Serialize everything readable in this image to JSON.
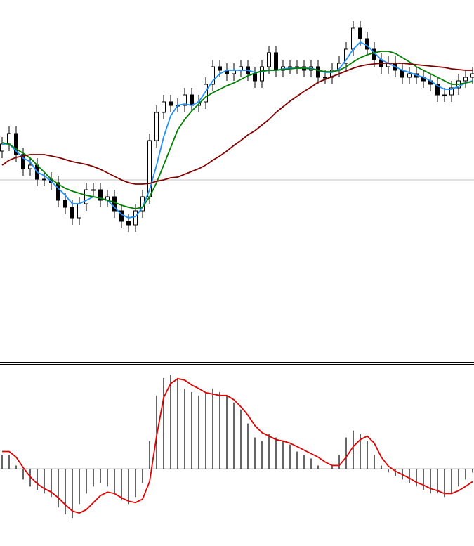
{
  "chart_data": [
    {
      "type": "candlestick",
      "open": [
        300,
        310,
        325,
        295,
        275,
        280,
        260,
        260,
        255,
        230,
        220,
        205,
        225,
        245,
        245,
        230,
        235,
        215,
        200,
        195,
        215,
        235,
        315,
        355,
        370,
        365,
        365,
        380,
        365,
        370,
        395,
        420,
        415,
        410,
        415,
        420,
        410,
        400,
        420,
        440,
        415,
        420,
        420,
        420,
        415,
        420,
        405,
        405,
        415,
        425,
        445,
        475,
        460,
        445,
        430,
        420,
        425,
        415,
        405,
        410,
        405,
        400,
        395,
        380,
        380,
        390,
        400,
        405
      ],
      "high": [
        320,
        335,
        335,
        305,
        290,
        290,
        270,
        270,
        265,
        240,
        230,
        235,
        255,
        255,
        255,
        245,
        245,
        225,
        210,
        225,
        245,
        325,
        365,
        380,
        380,
        375,
        390,
        390,
        380,
        405,
        430,
        430,
        425,
        425,
        430,
        430,
        420,
        430,
        450,
        450,
        430,
        430,
        430,
        430,
        430,
        430,
        415,
        425,
        435,
        455,
        485,
        485,
        470,
        455,
        440,
        435,
        435,
        425,
        420,
        420,
        415,
        410,
        405,
        390,
        400,
        410,
        415,
        420
      ],
      "low": [
        290,
        300,
        285,
        265,
        265,
        250,
        250,
        245,
        220,
        210,
        195,
        195,
        215,
        235,
        220,
        220,
        205,
        190,
        185,
        185,
        205,
        225,
        305,
        345,
        355,
        355,
        355,
        355,
        355,
        360,
        385,
        405,
        400,
        400,
        405,
        400,
        390,
        390,
        410,
        405,
        405,
        410,
        410,
        405,
        405,
        395,
        395,
        395,
        405,
        415,
        435,
        450,
        435,
        420,
        410,
        410,
        405,
        395,
        395,
        395,
        390,
        385,
        370,
        370,
        370,
        380,
        390,
        395
      ],
      "close": [
        310,
        325,
        295,
        275,
        280,
        260,
        260,
        255,
        230,
        220,
        205,
        225,
        245,
        245,
        230,
        235,
        215,
        200,
        195,
        215,
        235,
        315,
        355,
        370,
        365,
        365,
        380,
        365,
        370,
        395,
        420,
        415,
        410,
        415,
        420,
        410,
        400,
        420,
        440,
        415,
        420,
        420,
        420,
        415,
        420,
        405,
        405,
        415,
        425,
        445,
        475,
        460,
        445,
        430,
        420,
        425,
        415,
        405,
        410,
        405,
        400,
        395,
        380,
        380,
        390,
        400,
        405,
        410
      ],
      "up_color": "#ffffff",
      "down_color": "#000000",
      "edge_color": "#000000",
      "ylim": [
        0,
        515
      ],
      "hline": 259,
      "hline_color": "#c0c0c0",
      "series": [
        {
          "color": "#1e90ff",
          "values": [
            310,
            310,
            300,
            290,
            285,
            270,
            265,
            257,
            247,
            237,
            225,
            225,
            230,
            235,
            233,
            230,
            220,
            210,
            205,
            207,
            220,
            245,
            280,
            320,
            350,
            365,
            367,
            365,
            370,
            385,
            400,
            410,
            415,
            415,
            415,
            415,
            412,
            413,
            415,
            415,
            417,
            418,
            418,
            418,
            418,
            415,
            412,
            412,
            417,
            430,
            445,
            455,
            450,
            440,
            430,
            425,
            420,
            415,
            412,
            408,
            405,
            400,
            393,
            388,
            388,
            392,
            397,
            400
          ]
        },
        {
          "color": "#008000",
          "values": [
            312,
            310,
            303,
            297,
            290,
            280,
            270,
            260,
            253,
            247,
            243,
            240,
            237,
            235,
            233,
            230,
            227,
            223,
            220,
            218,
            220,
            235,
            255,
            280,
            305,
            330,
            345,
            357,
            367,
            377,
            383,
            388,
            393,
            397,
            402,
            407,
            411,
            414,
            415,
            415,
            416,
            417,
            418,
            418,
            417,
            415,
            413,
            413,
            415,
            420,
            427,
            433,
            437,
            440,
            442,
            442,
            439,
            433,
            427,
            420,
            415,
            410,
            405,
            400,
            395,
            395,
            397,
            399
          ]
        },
        {
          "color": "#800000",
          "values": [
            280,
            287,
            291,
            293,
            295,
            295,
            295,
            293,
            291,
            288,
            285,
            283,
            281,
            278,
            274,
            269,
            264,
            259,
            255,
            253,
            253,
            254,
            257,
            259,
            262,
            263,
            267,
            271,
            275,
            280,
            287,
            293,
            300,
            308,
            315,
            323,
            329,
            337,
            345,
            355,
            363,
            371,
            378,
            385,
            391,
            398,
            402,
            406,
            410,
            414,
            418,
            421,
            423,
            424,
            425,
            425,
            425,
            425,
            424,
            423,
            422,
            421,
            420,
            419,
            417,
            416,
            415,
            415
          ]
        }
      ]
    },
    {
      "type": "macd",
      "values": [
        20,
        20,
        5,
        -15,
        -25,
        -30,
        -35,
        -40,
        -55,
        -65,
        -70,
        -50,
        -35,
        -25,
        -20,
        -25,
        -35,
        -45,
        -50,
        -40,
        -20,
        40,
        105,
        130,
        135,
        130,
        115,
        110,
        105,
        110,
        115,
        110,
        105,
        95,
        85,
        65,
        45,
        40,
        50,
        45,
        40,
        35,
        25,
        20,
        15,
        5,
        0,
        5,
        20,
        45,
        55,
        50,
        40,
        20,
        5,
        -5,
        -10,
        -15,
        -20,
        -25,
        -30,
        -35,
        -35,
        -40,
        -35,
        -25,
        -15,
        -5
      ],
      "color": "#000000",
      "ylim": [
        -110,
        149
      ],
      "hline": 0,
      "hline_color": "#000000",
      "series": [
        {
          "color": "#e00000",
          "values": [
            25,
            25,
            17,
            2,
            -11,
            -21,
            -28,
            -33,
            -41,
            -51,
            -60,
            -63,
            -58,
            -48,
            -38,
            -33,
            -35,
            -41,
            -46,
            -48,
            -43,
            -18,
            47,
            102,
            122,
            129,
            127,
            120,
            115,
            109,
            107,
            105,
            105,
            99,
            89,
            77,
            62,
            52,
            47,
            42,
            40,
            37,
            32,
            27,
            22,
            17,
            10,
            5,
            5,
            17,
            32,
            42,
            47,
            37,
            17,
            4,
            -3,
            -8,
            -13,
            -19,
            -23,
            -28,
            -31,
            -35,
            -35,
            -31,
            -25,
            -18
          ]
        }
      ]
    }
  ]
}
